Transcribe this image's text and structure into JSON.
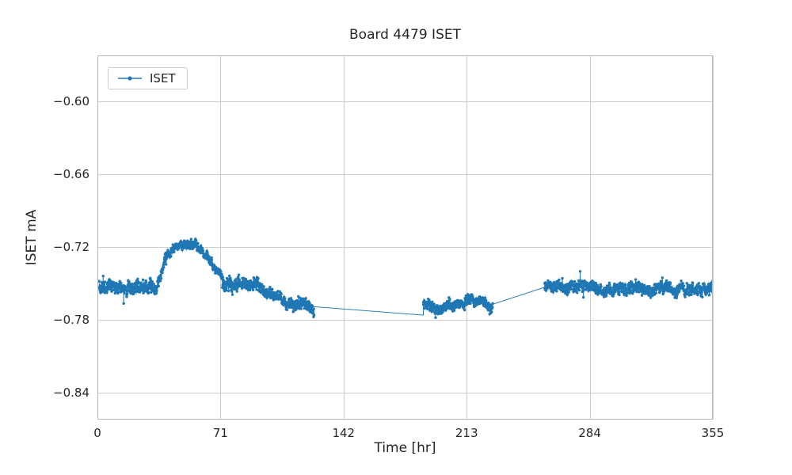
{
  "chart_data": {
    "type": "line",
    "title": "Board 4479 ISET",
    "xlabel": "Time [hr]",
    "ylabel": "ISET mA",
    "series_name": "ISET",
    "line_color": "#1f77b4",
    "text_color": "#262626",
    "grid_color": "#cdcdcd",
    "axes_edge_color": "#b8b8b8",
    "grid": true,
    "legend_position": "upper left",
    "xlim": [
      0,
      355
    ],
    "ylim": [
      -0.862,
      -0.562
    ],
    "xticks": [
      0,
      71,
      142,
      213,
      284,
      355
    ],
    "xtick_labels": [
      "0",
      "71",
      "142",
      "213",
      "284",
      "355"
    ],
    "yticks": [
      -0.6,
      -0.66,
      -0.72,
      -0.78,
      -0.84
    ],
    "ytick_labels": [
      "−0.60",
      "−0.66",
      "−0.72",
      "−0.78",
      "−0.84"
    ],
    "noise_seed": 42,
    "segments": [
      {
        "x0": 1,
        "x1": 34,
        "y0": -0.751,
        "y1": -0.755,
        "noise": 0.0055,
        "n": 300,
        "markers": true
      },
      {
        "x0": 34,
        "x1": 40,
        "y0": -0.755,
        "y1": -0.727,
        "noise": 0.004,
        "n": 50,
        "markers": true
      },
      {
        "x0": 40,
        "x1": 47,
        "y0": -0.726,
        "y1": -0.72,
        "noise": 0.0035,
        "n": 60,
        "markers": true
      },
      {
        "x0": 47,
        "x1": 57,
        "y0": -0.719,
        "y1": -0.716,
        "noise": 0.0035,
        "n": 90,
        "markers": true
      },
      {
        "x0": 57,
        "x1": 66,
        "y0": -0.718,
        "y1": -0.733,
        "noise": 0.004,
        "n": 80,
        "markers": true
      },
      {
        "x0": 66,
        "x1": 72,
        "y0": -0.733,
        "y1": -0.742,
        "noise": 0.0035,
        "n": 50,
        "markers": true
      },
      {
        "x0": 72,
        "x1": 79,
        "y0": -0.749,
        "y1": -0.757,
        "noise": 0.006,
        "n": 60,
        "markers": true
      },
      {
        "x0": 79,
        "x1": 93,
        "y0": -0.752,
        "y1": -0.749,
        "noise": 0.0055,
        "n": 120,
        "markers": true
      },
      {
        "x0": 93,
        "x1": 106,
        "y0": -0.755,
        "y1": -0.763,
        "noise": 0.005,
        "n": 110,
        "markers": true
      },
      {
        "x0": 106,
        "x1": 125,
        "y0": -0.764,
        "y1": -0.772,
        "noise": 0.005,
        "n": 160,
        "markers": true
      },
      {
        "x0": 125,
        "x1": 188,
        "y0": -0.769,
        "y1": -0.776,
        "noise": 0,
        "n": 2,
        "markers": false
      },
      {
        "x0": 188,
        "x1": 194,
        "y0": -0.766,
        "y1": -0.77,
        "noise": 0.005,
        "n": 50,
        "markers": true
      },
      {
        "x0": 194,
        "x1": 212,
        "y0": -0.77,
        "y1": -0.769,
        "noise": 0.0045,
        "n": 150,
        "markers": true
      },
      {
        "x0": 212,
        "x1": 219,
        "y0": -0.763,
        "y1": -0.764,
        "noise": 0.0045,
        "n": 60,
        "markers": true
      },
      {
        "x0": 219,
        "x1": 228,
        "y0": -0.767,
        "y1": -0.767,
        "noise": 0.004,
        "n": 75,
        "markers": true
      },
      {
        "x0": 228,
        "x1": 258,
        "y0": -0.767,
        "y1": -0.753,
        "noise": 0,
        "n": 2,
        "markers": false
      },
      {
        "x0": 258,
        "x1": 300,
        "y0": -0.752,
        "y1": -0.754,
        "noise": 0.005,
        "n": 350,
        "markers": true
      },
      {
        "x0": 300,
        "x1": 355,
        "y0": -0.754,
        "y1": -0.754,
        "noise": 0.005,
        "n": 460,
        "markers": true
      }
    ]
  }
}
